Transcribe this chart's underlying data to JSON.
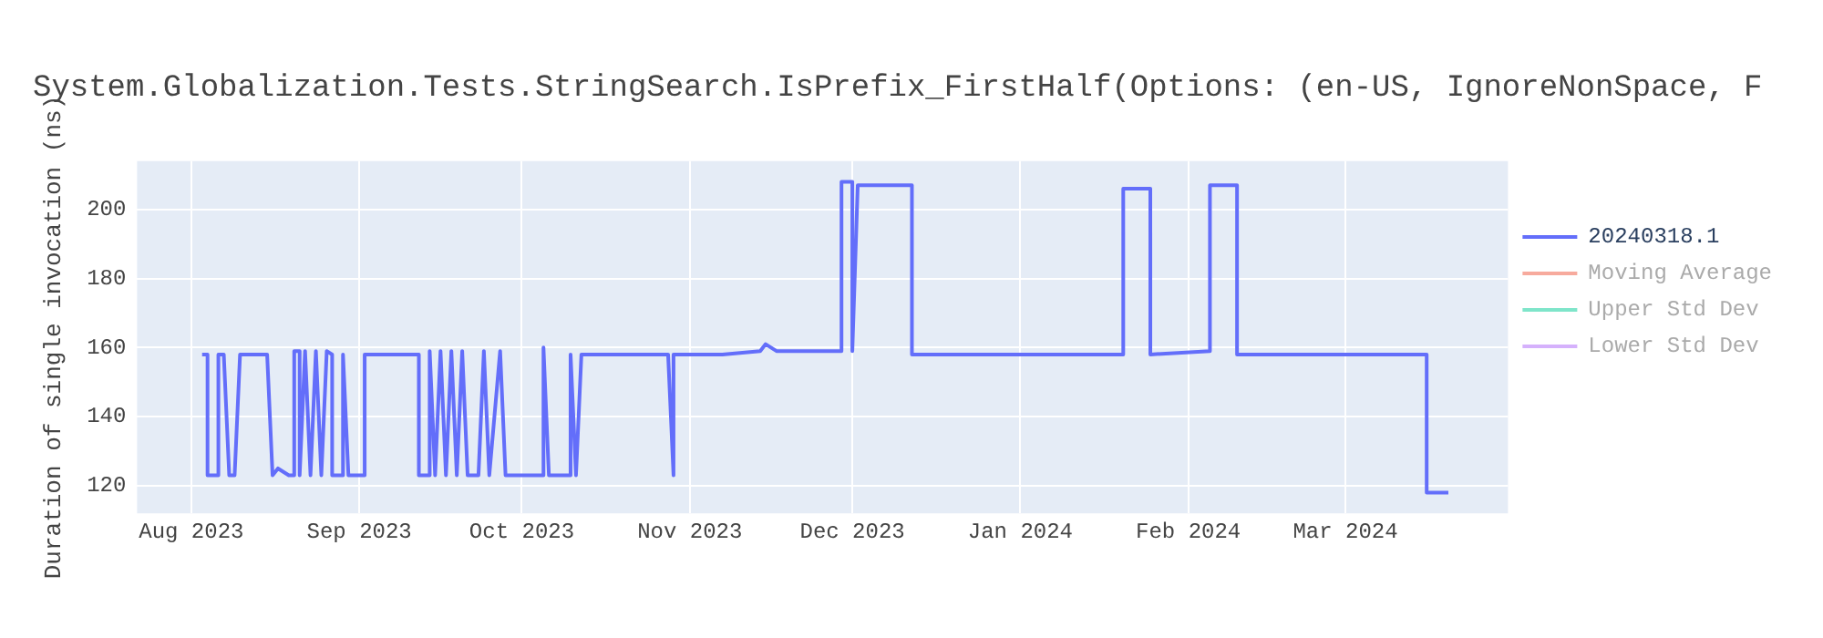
{
  "chart_data": {
    "type": "line",
    "title": "System.Globalization.Tests.StringSearch.IsPrefix_FirstHalf(Options: (en-US, IgnoreNonSpace, F",
    "ylabel": "Duration of single invocation (ns)",
    "xlim": [
      "2023-07-22",
      "2024-03-31"
    ],
    "xticks": [
      {
        "value": "2023-08-01",
        "label": "Aug 2023"
      },
      {
        "value": "2023-09-01",
        "label": "Sep 2023"
      },
      {
        "value": "2023-10-01",
        "label": "Oct 2023"
      },
      {
        "value": "2023-11-01",
        "label": "Nov 2023"
      },
      {
        "value": "2023-12-01",
        "label": "Dec 2023"
      },
      {
        "value": "2024-01-01",
        "label": "Jan 2024"
      },
      {
        "value": "2024-02-01",
        "label": "Feb 2024"
      },
      {
        "value": "2024-03-01",
        "label": "Mar 2024"
      }
    ],
    "ylim": [
      112,
      214
    ],
    "yticks": [
      120,
      140,
      160,
      180,
      200
    ],
    "grid": true,
    "legend": "top right",
    "marker": "none",
    "line_style": "solid",
    "series": [
      {
        "name": "20240318.1",
        "color": "#636efa",
        "x": [
          "2023-08-03",
          "2023-08-04",
          "2023-08-04",
          "2023-08-06",
          "2023-08-06",
          "2023-08-07",
          "2023-08-08",
          "2023-08-09",
          "2023-08-10",
          "2023-08-15",
          "2023-08-16",
          "2023-08-17",
          "2023-08-19",
          "2023-08-20",
          "2023-08-20",
          "2023-08-21",
          "2023-08-21",
          "2023-08-22",
          "2023-08-23",
          "2023-08-24",
          "2023-08-25",
          "2023-08-26",
          "2023-08-27",
          "2023-08-27",
          "2023-08-29",
          "2023-08-29",
          "2023-08-30",
          "2023-09-02",
          "2023-09-02",
          "2023-09-12",
          "2023-09-12",
          "2023-09-14",
          "2023-09-14",
          "2023-09-15",
          "2023-09-16",
          "2023-09-17",
          "2023-09-18",
          "2023-09-19",
          "2023-09-20",
          "2023-09-21",
          "2023-09-23",
          "2023-09-24",
          "2023-09-25",
          "2023-09-27",
          "2023-09-28",
          "2023-10-05",
          "2023-10-05",
          "2023-10-06",
          "2023-10-10",
          "2023-10-10",
          "2023-10-11",
          "2023-10-12",
          "2023-10-20",
          "2023-10-28",
          "2023-10-29",
          "2023-10-29",
          "2023-11-07",
          "2023-11-14",
          "2023-11-15",
          "2023-11-17",
          "2023-11-29",
          "2023-11-29",
          "2023-12-01",
          "2023-12-01",
          "2023-12-02",
          "2023-12-12",
          "2023-12-12",
          "2023-12-25",
          "2024-01-20",
          "2024-01-20",
          "2024-01-25",
          "2024-01-25",
          "2024-02-05",
          "2024-02-05",
          "2024-02-10",
          "2024-02-10",
          "2024-03-16",
          "2024-03-16",
          "2024-03-20"
        ],
        "values": [
          158,
          158,
          123,
          123,
          158,
          158,
          123,
          123,
          158,
          158,
          123,
          125,
          123,
          123,
          159,
          159,
          123,
          159,
          123,
          159,
          123,
          159,
          158,
          123,
          123,
          158,
          123,
          123,
          158,
          158,
          123,
          123,
          159,
          123,
          159,
          123,
          159,
          123,
          159,
          123,
          123,
          159,
          123,
          159,
          123,
          123,
          160,
          123,
          123,
          158,
          123,
          158,
          158,
          158,
          123,
          158,
          158,
          159,
          161,
          159,
          159,
          208,
          208,
          159,
          207,
          207,
          158,
          158,
          158,
          206,
          206,
          158,
          159,
          207,
          207,
          158,
          158,
          118,
          118
        ]
      },
      {
        "name": "Moving Average",
        "color": "#ef553b",
        "values": [
          null
        ]
      },
      {
        "name": "Upper Std Dev",
        "color": "#00cc96",
        "values": [
          null
        ]
      },
      {
        "name": "Lower Std Dev",
        "color": "#ab63fa",
        "values": [
          null
        ]
      }
    ]
  }
}
